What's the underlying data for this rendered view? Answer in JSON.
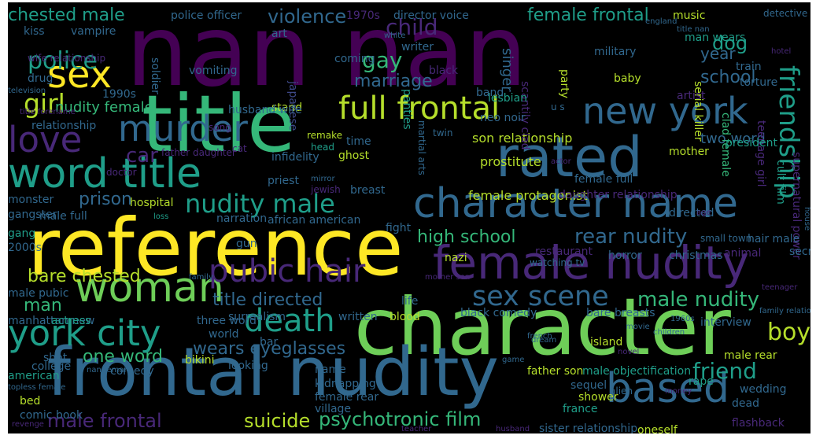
{
  "palette": {
    "purple": "#440154",
    "indigo": "#482878",
    "blue": "#3e4989",
    "steel": "#31688e",
    "teal": "#26828e",
    "cyan": "#1f9e89",
    "green": "#35b779",
    "lime": "#6ece58",
    "yellowgreen": "#b5de2b",
    "yellow": "#fde725"
  },
  "words": [
    "nan nan",
    "reference",
    "character",
    "title",
    "frontal nudity",
    "rated",
    "word title",
    "character name",
    "female nudity",
    "based",
    "woman",
    "new york",
    "murder",
    "love",
    "sex",
    "full frontal",
    "york city",
    "death",
    "pubic hair",
    "friendship",
    "sex scene",
    "girl",
    "police",
    "nudity male",
    "rear nudity",
    "male nudity",
    "chested male",
    "violence",
    "female frontal",
    "child",
    "gay",
    "marriage",
    "dog",
    "boy",
    "friend",
    "school",
    "year",
    "prison",
    "bare chested",
    "title directed",
    "high school",
    "suicide",
    "psychotronic film",
    "male frontal",
    "one word",
    "wears eyeglasses",
    "man",
    "nudity female",
    "son relationship",
    "prostitute",
    "two word",
    "mother",
    "car",
    "hospital",
    "male full",
    "african american",
    "fight",
    "female protagonist",
    "daughter relationship",
    "cult film",
    "supernatural power",
    "serial killer",
    "clad female",
    "teenage girl",
    "torture",
    "train",
    "man wears",
    "music",
    "military",
    "baby",
    "party",
    "scantily clad",
    "singer",
    "lesbian",
    "black",
    "writer",
    "art",
    "vomiting",
    "coming",
    "japanese",
    "police officer",
    "1970s",
    "director voice",
    "england",
    "detective",
    "kiss",
    "vampire",
    "white",
    "wife relationship",
    "hotel",
    "drug",
    "soldier",
    "1990s",
    "band",
    "u s",
    "stand",
    "husband wife",
    "relationship",
    "title forename",
    "song",
    "father daughter",
    "cat",
    "remake",
    "head",
    "time",
    "twin",
    "neo noir",
    "panties",
    "martial arts",
    "infidelity",
    "ghost",
    "doctor",
    "priest",
    "mirror",
    "jewish",
    "breast",
    "female full",
    "actor",
    "president",
    "house",
    "artist",
    "monster",
    "gangster",
    "loss",
    "narration",
    "directed",
    "age",
    "gang",
    "2000s",
    "gun",
    "nazi",
    "restaurant",
    "watching tv",
    "horror",
    "christmas",
    "small town",
    "hair male",
    "animal",
    "secret",
    "family",
    "mother son",
    "life",
    "male pubic",
    "teenager",
    "manhattan new",
    "actress",
    "three word",
    "surrealism",
    "written",
    "blood",
    "black comedy",
    "bare breasts",
    "family relationships",
    "interview",
    "1960s",
    "movie",
    "world",
    "bar",
    "island",
    "children",
    "shot",
    "dream",
    "novel",
    "french",
    "bikini",
    "looking",
    "game",
    "male rear",
    "college",
    "nan female",
    "comedy",
    "name",
    "father son",
    "male objectification",
    "american",
    "topless female",
    "bed",
    "kidnapping",
    "sequel",
    "shower",
    "rape",
    "wedding",
    "alien",
    "money",
    "comic book",
    "female rear",
    "village",
    "france",
    "dead",
    "revenge",
    "teacher",
    "husband",
    "sister relationship",
    "oneself",
    "flashback",
    "television",
    "title nan",
    "pregnancy",
    "dance"
  ]
}
